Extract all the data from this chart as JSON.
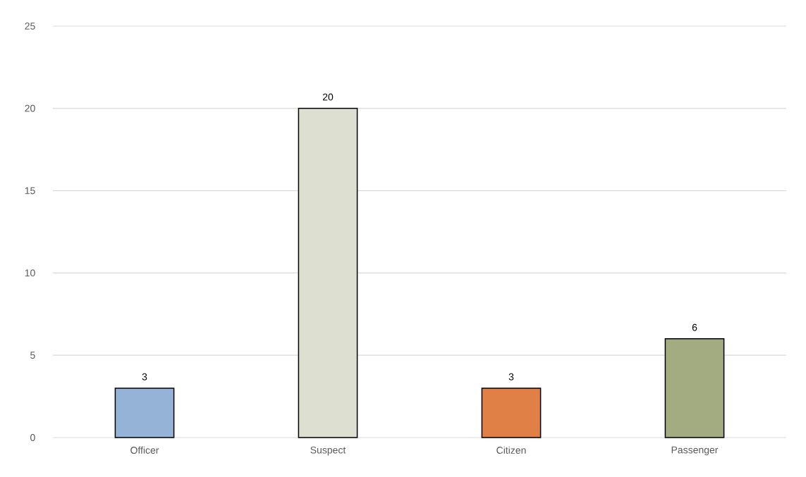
{
  "chart_data": {
    "type": "bar",
    "categories": [
      "Officer",
      "Suspect",
      "Citizen",
      "Passenger"
    ],
    "values": [
      3,
      20,
      3,
      6
    ],
    "colors": [
      "#95b3d7",
      "#dddfd0",
      "#e07f46",
      "#a3ab80"
    ],
    "ylim": [
      0,
      25
    ],
    "yticks": [
      0,
      5,
      10,
      15,
      20,
      25
    ],
    "grid": "y",
    "data_labels": true
  }
}
